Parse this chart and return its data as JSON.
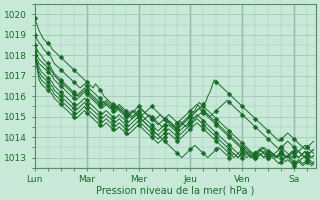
{
  "title": "Pression niveau de la mer( hPa )",
  "bg_color": "#c8e8d8",
  "grid_color": "#a0c8b8",
  "line_color": "#1a6b2a",
  "xlim": [
    0,
    130
  ],
  "ylim": [
    1012.5,
    1020.5
  ],
  "yticks": [
    1013,
    1014,
    1015,
    1016,
    1017,
    1018,
    1019,
    1020
  ],
  "xtick_labels": [
    "Lun",
    "Mar",
    "Mer",
    "Jeu",
    "Ven",
    "Sa"
  ],
  "xtick_positions": [
    0,
    24,
    48,
    72,
    96,
    120
  ],
  "vline_positions": [
    24,
    48,
    72,
    96,
    120
  ],
  "lines": [
    {
      "y": [
        1019.8,
        1019.5,
        1019.2,
        1019.0,
        1018.8,
        1018.7,
        1018.6,
        1018.5,
        1018.3,
        1018.2,
        1018.1,
        1018.0,
        1017.9,
        1017.8,
        1017.7,
        1017.6,
        1017.5,
        1017.4,
        1017.3,
        1017.2,
        1017.1,
        1017.0,
        1016.9,
        1016.8,
        1016.7,
        1016.6,
        1016.5,
        1016.4,
        1016.6,
        1016.5,
        1016.3,
        1016.2,
        1016.0,
        1015.9,
        1015.8,
        1015.7,
        1015.6,
        1015.5,
        1015.4,
        1015.3,
        1015.2,
        1015.1,
        1015.0,
        1015.1,
        1015.2,
        1015.3,
        1015.2,
        1015.1,
        1015.0,
        1014.9,
        1014.8,
        1014.7,
        1014.6,
        1014.5,
        1014.4,
        1014.3,
        1014.2,
        1014.1,
        1014.0,
        1013.9,
        1013.8,
        1013.7,
        1013.6,
        1013.5,
        1013.4,
        1013.3,
        1013.2,
        1013.1,
        1013.0,
        1013.1,
        1013.2,
        1013.3,
        1013.4,
        1013.5,
        1013.6,
        1013.5,
        1013.4,
        1013.3,
        1013.2,
        1013.1,
        1013.0,
        1013.1,
        1013.2,
        1013.3,
        1013.4,
        1013.5,
        1013.4,
        1013.3,
        1013.2,
        1013.1,
        1013.0,
        1013.1,
        1013.2,
        1013.1,
        1013.0,
        1013.1,
        1013.2,
        1013.1,
        1013.0,
        1013.1,
        1013.0,
        1013.1,
        1013.2,
        1013.3,
        1013.4,
        1013.5,
        1013.4,
        1013.3,
        1013.2,
        1013.1,
        1013.0,
        1012.9,
        1012.8,
        1012.7,
        1012.8,
        1012.9,
        1013.0,
        1013.1,
        1013.2,
        1013.3,
        1013.2,
        1013.1,
        1013.0,
        1013.1,
        1013.2,
        1013.3,
        1013.2,
        1013.1,
        1013.0,
        1013.1
      ]
    },
    {
      "y": [
        1019.0,
        1018.8,
        1018.6,
        1018.5,
        1018.3,
        1018.2,
        1018.1,
        1018.0,
        1017.8,
        1017.6,
        1017.5,
        1017.4,
        1017.3,
        1017.2,
        1017.1,
        1017.0,
        1016.9,
        1016.8,
        1016.7,
        1016.6,
        1016.5,
        1016.4,
        1016.5,
        1016.6,
        1016.5,
        1016.4,
        1016.3,
        1016.2,
        1016.1,
        1016.0,
        1015.9,
        1015.8,
        1015.7,
        1015.6,
        1015.5,
        1015.4,
        1015.5,
        1015.6,
        1015.5,
        1015.4,
        1015.3,
        1015.2,
        1015.1,
        1015.0,
        1015.1,
        1015.2,
        1015.3,
        1015.2,
        1015.1,
        1015.0,
        1015.1,
        1015.2,
        1015.3,
        1015.4,
        1015.5,
        1015.4,
        1015.3,
        1015.2,
        1015.1,
        1015.0,
        1014.9,
        1014.8,
        1014.7,
        1014.6,
        1014.5,
        1014.6,
        1014.7,
        1014.8,
        1014.7,
        1014.6,
        1014.5,
        1014.6,
        1014.7,
        1014.8,
        1014.9,
        1015.0,
        1015.1,
        1015.2,
        1015.3,
        1015.2,
        1015.1,
        1015.0,
        1015.1,
        1015.2,
        1015.3,
        1015.4,
        1015.5,
        1015.6,
        1015.7,
        1015.8,
        1015.7,
        1015.6,
        1015.5,
        1015.4,
        1015.3,
        1015.2,
        1015.1,
        1015.0,
        1014.9,
        1014.8,
        1014.7,
        1014.6,
        1014.5,
        1014.4,
        1014.3,
        1014.2,
        1014.1,
        1014.0,
        1013.9,
        1013.8,
        1013.7,
        1013.6,
        1013.5,
        1013.4,
        1013.5,
        1013.6,
        1013.7,
        1013.8,
        1013.7,
        1013.6,
        1013.5,
        1013.4,
        1013.3,
        1013.2,
        1013.1,
        1013.0,
        1013.1,
        1013.2,
        1013.3,
        1013.4
      ]
    },
    {
      "y": [
        1018.5,
        1018.3,
        1018.1,
        1018.0,
        1017.8,
        1017.7,
        1017.6,
        1017.5,
        1017.3,
        1017.1,
        1017.0,
        1016.9,
        1016.8,
        1016.7,
        1016.6,
        1016.5,
        1016.4,
        1016.3,
        1016.2,
        1016.1,
        1016.0,
        1016.1,
        1016.2,
        1016.3,
        1016.2,
        1016.1,
        1016.0,
        1015.9,
        1015.8,
        1015.7,
        1015.6,
        1015.5,
        1015.6,
        1015.7,
        1015.6,
        1015.5,
        1015.4,
        1015.3,
        1015.4,
        1015.5,
        1015.4,
        1015.3,
        1015.2,
        1015.1,
        1015.0,
        1014.9,
        1015.0,
        1015.1,
        1015.0,
        1014.9,
        1014.8,
        1014.9,
        1015.0,
        1015.1,
        1015.0,
        1014.9,
        1014.8,
        1014.7,
        1014.6,
        1014.5,
        1014.6,
        1014.7,
        1014.8,
        1014.7,
        1014.6,
        1014.5,
        1014.4,
        1014.5,
        1014.6,
        1014.7,
        1014.8,
        1014.9,
        1015.0,
        1015.1,
        1015.2,
        1015.3,
        1015.4,
        1015.5,
        1015.6,
        1015.7,
        1016.0,
        1016.2,
        1016.5,
        1016.8,
        1016.7,
        1016.6,
        1016.5,
        1016.4,
        1016.3,
        1016.2,
        1016.1,
        1016.0,
        1015.9,
        1015.8,
        1015.7,
        1015.6,
        1015.5,
        1015.4,
        1015.3,
        1015.2,
        1015.1,
        1015.0,
        1014.9,
        1014.8,
        1014.7,
        1014.6,
        1014.5,
        1014.4,
        1014.3,
        1014.2,
        1014.1,
        1014.0,
        1013.9,
        1013.8,
        1013.9,
        1014.0,
        1014.1,
        1014.2,
        1014.1,
        1014.0,
        1013.9,
        1013.8,
        1013.7,
        1013.6,
        1013.5,
        1013.4,
        1013.5,
        1013.6,
        1013.7,
        1013.8
      ]
    },
    {
      "y": [
        1018.2,
        1018.0,
        1017.8,
        1017.7,
        1017.6,
        1017.5,
        1017.4,
        1017.3,
        1017.2,
        1017.0,
        1016.9,
        1016.8,
        1016.7,
        1016.6,
        1016.5,
        1016.4,
        1016.3,
        1016.2,
        1016.1,
        1016.0,
        1016.1,
        1016.2,
        1016.3,
        1016.4,
        1016.3,
        1016.2,
        1016.1,
        1016.0,
        1015.9,
        1015.8,
        1015.7,
        1015.6,
        1015.7,
        1015.8,
        1015.7,
        1015.6,
        1015.5,
        1015.4,
        1015.5,
        1015.6,
        1015.5,
        1015.4,
        1015.3,
        1015.2,
        1015.1,
        1015.0,
        1015.1,
        1015.2,
        1015.3,
        1015.4,
        1015.3,
        1015.2,
        1015.1,
        1015.0,
        1014.9,
        1014.8,
        1014.9,
        1015.0,
        1015.1,
        1015.0,
        1014.9,
        1014.8,
        1014.7,
        1014.6,
        1014.5,
        1014.4,
        1014.5,
        1014.6,
        1014.7,
        1014.8,
        1014.9,
        1015.0,
        1015.1,
        1015.2,
        1015.3,
        1015.5,
        1015.7,
        1015.6,
        1015.5,
        1015.4,
        1015.3,
        1015.2,
        1015.1,
        1015.0,
        1014.9,
        1014.8,
        1014.7,
        1014.6,
        1014.5,
        1014.4,
        1014.3,
        1014.2,
        1014.1,
        1014.0,
        1013.9,
        1013.8,
        1013.7,
        1013.6,
        1013.5,
        1013.4,
        1013.3,
        1013.2,
        1013.1,
        1013.0,
        1013.1,
        1013.2,
        1013.3,
        1013.2,
        1013.1,
        1013.0,
        1013.1,
        1013.2,
        1013.3,
        1013.4,
        1013.5,
        1013.4,
        1013.3,
        1013.2,
        1013.1,
        1013.0,
        1013.1,
        1013.2,
        1013.3,
        1013.4,
        1013.5,
        1013.6,
        1013.5,
        1013.4,
        1013.3,
        1013.2
      ]
    },
    {
      "y": [
        1018.0,
        1017.8,
        1017.6,
        1017.5,
        1017.4,
        1017.3,
        1017.2,
        1017.1,
        1017.0,
        1016.8,
        1016.7,
        1016.6,
        1016.5,
        1016.4,
        1016.3,
        1016.2,
        1016.1,
        1016.0,
        1015.9,
        1015.8,
        1015.9,
        1016.0,
        1016.1,
        1016.2,
        1016.1,
        1016.0,
        1015.9,
        1015.8,
        1015.7,
        1015.6,
        1015.5,
        1015.4,
        1015.5,
        1015.6,
        1015.5,
        1015.4,
        1015.3,
        1015.2,
        1015.3,
        1015.4,
        1015.3,
        1015.2,
        1015.1,
        1015.0,
        1015.1,
        1015.2,
        1015.3,
        1015.4,
        1015.5,
        1015.4,
        1015.3,
        1015.2,
        1015.1,
        1015.0,
        1014.9,
        1014.8,
        1014.7,
        1014.6,
        1014.7,
        1014.8,
        1014.9,
        1015.0,
        1015.1,
        1015.0,
        1014.9,
        1014.8,
        1014.7,
        1014.8,
        1014.9,
        1015.0,
        1015.1,
        1015.2,
        1015.3,
        1015.4,
        1015.5,
        1015.6,
        1015.5,
        1015.4,
        1015.3,
        1015.2,
        1015.1,
        1015.0,
        1014.9,
        1014.8,
        1014.7,
        1014.6,
        1014.5,
        1014.4,
        1014.3,
        1014.2,
        1014.1,
        1014.0,
        1013.9,
        1013.8,
        1013.7,
        1013.6,
        1013.5,
        1013.4,
        1013.3,
        1013.2,
        1013.1,
        1013.0,
        1013.1,
        1013.2,
        1013.3,
        1013.4,
        1013.5,
        1013.4,
        1013.3,
        1013.2,
        1013.1,
        1013.0,
        1013.1,
        1013.2,
        1013.3,
        1013.2,
        1013.1,
        1013.0,
        1013.1,
        1013.2,
        1013.3,
        1013.4,
        1013.3,
        1013.2,
        1013.1,
        1013.0,
        1013.1,
        1013.2,
        1013.3,
        1013.4
      ]
    },
    {
      "y": [
        1018.0,
        1017.7,
        1017.4,
        1017.2,
        1017.1,
        1017.0,
        1016.9,
        1016.8,
        1016.7,
        1016.5,
        1016.4,
        1016.3,
        1016.2,
        1016.1,
        1016.0,
        1015.9,
        1015.8,
        1015.7,
        1015.6,
        1015.5,
        1015.6,
        1015.7,
        1015.8,
        1015.9,
        1015.8,
        1015.7,
        1015.6,
        1015.5,
        1015.4,
        1015.3,
        1015.2,
        1015.1,
        1015.2,
        1015.3,
        1015.2,
        1015.1,
        1015.0,
        1014.9,
        1015.0,
        1015.1,
        1015.0,
        1014.9,
        1014.8,
        1014.7,
        1014.8,
        1014.9,
        1015.0,
        1015.1,
        1015.2,
        1015.1,
        1015.0,
        1014.9,
        1014.8,
        1014.7,
        1014.6,
        1014.5,
        1014.4,
        1014.3,
        1014.4,
        1014.5,
        1014.6,
        1014.7,
        1014.8,
        1014.7,
        1014.6,
        1014.5,
        1014.4,
        1014.5,
        1014.6,
        1014.7,
        1014.8,
        1014.9,
        1015.0,
        1015.1,
        1015.2,
        1015.3,
        1015.4,
        1015.3,
        1015.2,
        1015.1,
        1015.0,
        1014.9,
        1014.8,
        1014.7,
        1014.6,
        1014.5,
        1014.4,
        1014.3,
        1014.2,
        1014.1,
        1014.0,
        1013.9,
        1013.8,
        1013.7,
        1013.6,
        1013.5,
        1013.4,
        1013.3,
        1013.2,
        1013.1,
        1013.0,
        1013.1,
        1013.2,
        1013.3,
        1013.4,
        1013.3,
        1013.2,
        1013.1,
        1013.0,
        1013.1,
        1013.2,
        1013.1,
        1013.0,
        1013.1,
        1013.2,
        1013.1,
        1013.0,
        1013.1,
        1013.2,
        1013.3,
        1013.2,
        1013.1,
        1013.0,
        1013.1,
        1013.2,
        1013.3,
        1013.2,
        1013.1,
        1013.0,
        1013.1
      ]
    },
    {
      "y": [
        1018.0,
        1017.6,
        1017.2,
        1017.0,
        1016.9,
        1016.8,
        1016.7,
        1016.6,
        1016.5,
        1016.3,
        1016.2,
        1016.1,
        1016.0,
        1015.9,
        1015.8,
        1015.7,
        1015.6,
        1015.5,
        1015.4,
        1015.3,
        1015.4,
        1015.5,
        1015.6,
        1015.7,
        1015.6,
        1015.5,
        1015.4,
        1015.3,
        1015.2,
        1015.1,
        1015.0,
        1014.9,
        1015.0,
        1015.1,
        1015.0,
        1014.9,
        1014.8,
        1014.7,
        1014.8,
        1014.9,
        1014.8,
        1014.7,
        1014.6,
        1014.5,
        1014.6,
        1014.7,
        1014.8,
        1014.9,
        1015.0,
        1014.9,
        1014.8,
        1014.7,
        1014.6,
        1014.5,
        1014.4,
        1014.3,
        1014.2,
        1014.1,
        1014.2,
        1014.3,
        1014.4,
        1014.5,
        1014.6,
        1014.5,
        1014.4,
        1014.3,
        1014.2,
        1014.3,
        1014.4,
        1014.5,
        1014.6,
        1014.7,
        1014.8,
        1014.9,
        1015.0,
        1015.1,
        1015.0,
        1014.9,
        1014.8,
        1014.7,
        1014.6,
        1014.5,
        1014.4,
        1014.3,
        1014.2,
        1014.1,
        1014.0,
        1013.9,
        1013.8,
        1013.7,
        1013.6,
        1013.5,
        1013.4,
        1013.3,
        1013.2,
        1013.1,
        1013.0,
        1013.1,
        1013.2,
        1013.3,
        1013.2,
        1013.1,
        1013.0,
        1013.1,
        1013.2,
        1013.1,
        1013.0,
        1013.1,
        1013.2,
        1013.3,
        1013.2,
        1013.1,
        1013.0,
        1013.1,
        1013.2,
        1013.1,
        1013.0,
        1013.1,
        1013.0,
        1012.9,
        1012.8,
        1012.7,
        1012.8,
        1012.9,
        1013.0,
        1013.1,
        1013.0,
        1012.9,
        1012.8,
        1012.7
      ]
    },
    {
      "y": [
        1018.0,
        1017.5,
        1017.0,
        1016.8,
        1016.7,
        1016.6,
        1016.5,
        1016.4,
        1016.3,
        1016.1,
        1016.0,
        1015.9,
        1015.8,
        1015.7,
        1015.6,
        1015.5,
        1015.4,
        1015.3,
        1015.2,
        1015.1,
        1015.2,
        1015.3,
        1015.4,
        1015.5,
        1015.4,
        1015.3,
        1015.2,
        1015.1,
        1015.0,
        1014.9,
        1014.8,
        1014.7,
        1014.8,
        1014.9,
        1014.8,
        1014.7,
        1014.6,
        1014.5,
        1014.6,
        1014.7,
        1014.6,
        1014.5,
        1014.4,
        1014.3,
        1014.4,
        1014.5,
        1014.6,
        1014.7,
        1014.8,
        1014.7,
        1014.6,
        1014.5,
        1014.4,
        1014.3,
        1014.2,
        1014.1,
        1014.0,
        1013.9,
        1014.0,
        1014.1,
        1014.2,
        1014.3,
        1014.4,
        1014.3,
        1014.2,
        1014.1,
        1014.0,
        1014.1,
        1014.2,
        1014.3,
        1014.4,
        1014.5,
        1014.6,
        1014.7,
        1014.8,
        1014.9,
        1014.8,
        1014.7,
        1014.6,
        1014.5,
        1014.4,
        1014.3,
        1014.2,
        1014.1,
        1014.0,
        1013.9,
        1013.8,
        1013.7,
        1013.6,
        1013.5,
        1013.4,
        1013.3,
        1013.2,
        1013.1,
        1013.0,
        1013.1,
        1013.2,
        1013.3,
        1013.2,
        1013.1,
        1013.0,
        1013.1,
        1013.2,
        1013.3,
        1013.4,
        1013.3,
        1013.2,
        1013.1,
        1013.0,
        1013.1,
        1013.2,
        1013.1,
        1013.0,
        1013.1,
        1013.2,
        1013.1,
        1013.0,
        1013.1,
        1012.9,
        1012.8,
        1012.7,
        1012.8,
        1012.9,
        1012.8,
        1012.7,
        1012.8,
        1012.9,
        1012.8,
        1012.7,
        1012.8
      ]
    },
    {
      "y": [
        1018.0,
        1017.4,
        1016.8,
        1016.6,
        1016.5,
        1016.4,
        1016.3,
        1016.2,
        1016.1,
        1015.9,
        1015.8,
        1015.7,
        1015.6,
        1015.5,
        1015.4,
        1015.3,
        1015.2,
        1015.1,
        1015.0,
        1014.9,
        1015.0,
        1015.1,
        1015.2,
        1015.3,
        1015.2,
        1015.1,
        1015.0,
        1014.9,
        1014.8,
        1014.7,
        1014.6,
        1014.5,
        1014.6,
        1014.7,
        1014.6,
        1014.5,
        1014.4,
        1014.3,
        1014.4,
        1014.5,
        1014.4,
        1014.3,
        1014.2,
        1014.1,
        1014.2,
        1014.3,
        1014.4,
        1014.5,
        1014.6,
        1014.5,
        1014.4,
        1014.3,
        1014.2,
        1014.1,
        1014.0,
        1013.9,
        1013.8,
        1013.7,
        1013.8,
        1013.9,
        1014.0,
        1014.1,
        1014.2,
        1014.1,
        1014.0,
        1013.9,
        1013.8,
        1013.9,
        1014.0,
        1014.1,
        1014.2,
        1014.3,
        1014.4,
        1014.5,
        1014.6,
        1014.7,
        1014.6,
        1014.5,
        1014.4,
        1014.3,
        1014.2,
        1014.1,
        1014.0,
        1013.9,
        1013.8,
        1013.7,
        1013.6,
        1013.5,
        1013.4,
        1013.3,
        1013.2,
        1013.1,
        1013.0,
        1013.1,
        1013.2,
        1013.3,
        1013.4,
        1013.5,
        1013.4,
        1013.3,
        1013.2,
        1013.1,
        1013.0,
        1013.1,
        1013.2,
        1013.1,
        1013.0,
        1013.1,
        1013.2,
        1013.3,
        1013.2,
        1013.1,
        1013.0,
        1013.1,
        1013.0,
        1012.9,
        1012.8,
        1012.9,
        1012.8,
        1012.7,
        1012.6,
        1012.7,
        1012.8,
        1012.7,
        1012.6,
        1012.7,
        1012.8,
        1012.7,
        1012.6,
        1012.7
      ]
    }
  ],
  "marker_every": 6,
  "markersize": 2.5,
  "linewidth": 0.7
}
